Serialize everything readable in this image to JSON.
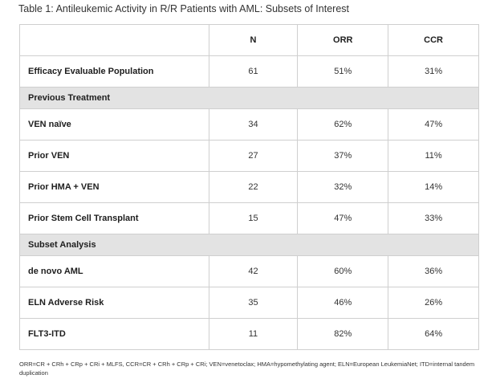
{
  "caption": "Table 1: Antileukemic Activity in R/R Patients with AML: Subsets of Interest",
  "columns": [
    "",
    "N",
    "ORR",
    "CCR"
  ],
  "rows": [
    {
      "type": "data",
      "label": "Efficacy Evaluable Population",
      "n": "61",
      "orr": "51%",
      "ccr": "31%"
    },
    {
      "type": "section",
      "label": "Previous Treatment"
    },
    {
      "type": "data",
      "label": "VEN naïve",
      "n": "34",
      "orr": "62%",
      "ccr": "47%"
    },
    {
      "type": "data",
      "label": "Prior VEN",
      "n": "27",
      "orr": "37%",
      "ccr": "11%"
    },
    {
      "type": "data",
      "label": "Prior HMA + VEN",
      "n": "22",
      "orr": "32%",
      "ccr": "14%"
    },
    {
      "type": "data",
      "label": "Prior Stem Cell Transplant",
      "n": "15",
      "orr": "47%",
      "ccr": "33%"
    },
    {
      "type": "section",
      "label": "Subset Analysis"
    },
    {
      "type": "data",
      "label": "de novo AML",
      "n": "42",
      "orr": "60%",
      "ccr": "36%"
    },
    {
      "type": "data",
      "label": "ELN Adverse Risk",
      "n": "35",
      "orr": "46%",
      "ccr": "26%"
    },
    {
      "type": "data",
      "label": "FLT3-ITD",
      "n": "11",
      "orr": "82%",
      "ccr": "64%"
    }
  ],
  "footnote": "ORR=CR + CRh + CRp + CRi + MLFS, CCR=CR + CRh + CRp + CRi; VEN=venetoclax; HMA=hypomethylating agent; ELN=European LeukemiaNet; ITD=internal tandem duplication"
}
